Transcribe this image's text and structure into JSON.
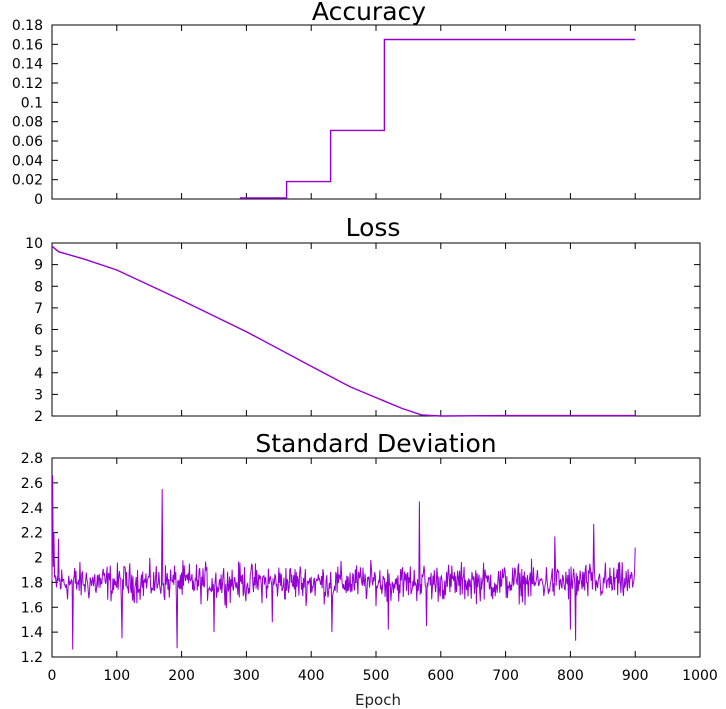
{
  "chart_data": [
    {
      "type": "line",
      "title": "Accuracy",
      "xlim": [
        0,
        1000
      ],
      "ylim": [
        0,
        0.18
      ],
      "yticks": [
        "0",
        "0.02",
        "0.04",
        "0.06",
        "0.08",
        "0.1",
        "0.12",
        "0.14",
        "0.16",
        "0.18"
      ],
      "color": "#9400d3",
      "points": [
        [
          290,
          0.001
        ],
        [
          362,
          0.001
        ],
        [
          362,
          0.018
        ],
        [
          430,
          0.018
        ],
        [
          430,
          0.071
        ],
        [
          513,
          0.071
        ],
        [
          513,
          0.165
        ],
        [
          900,
          0.165
        ]
      ]
    },
    {
      "type": "line",
      "title": "Loss",
      "xlim": [
        0,
        1000
      ],
      "ylim": [
        2,
        10
      ],
      "yticks": [
        "2",
        "3",
        "4",
        "5",
        "6",
        "7",
        "8",
        "9",
        "10"
      ],
      "color": "#9400d3",
      "points": [
        [
          0,
          9.85
        ],
        [
          10,
          9.6
        ],
        [
          50,
          9.25
        ],
        [
          100,
          8.75
        ],
        [
          200,
          7.35
        ],
        [
          300,
          5.9
        ],
        [
          400,
          4.3
        ],
        [
          460,
          3.35
        ],
        [
          500,
          2.85
        ],
        [
          540,
          2.35
        ],
        [
          570,
          2.05
        ],
        [
          600,
          2.0
        ],
        [
          700,
          2.02
        ],
        [
          900,
          2.02
        ]
      ]
    },
    {
      "type": "line",
      "title": "Standard Deviation",
      "xlim": [
        0,
        1000
      ],
      "ylim": [
        1.2,
        2.8
      ],
      "yticks": [
        "1.2",
        "1.4",
        "1.6",
        "1.8",
        "2",
        "2.2",
        "2.4",
        "2.6",
        "2.8"
      ],
      "xticks": [
        "0",
        "100",
        "200",
        "300",
        "400",
        "500",
        "600",
        "700",
        "800",
        "900",
        "1000"
      ],
      "xlabel": "Epoch",
      "color": "#9400d3",
      "samples": 900,
      "baseline": 1.8,
      "spikes": [
        [
          1,
          2.66
        ],
        [
          3,
          2.2
        ],
        [
          10,
          2.15
        ],
        [
          32,
          1.26
        ],
        [
          108,
          1.35
        ],
        [
          170,
          2.55
        ],
        [
          193,
          1.27
        ],
        [
          250,
          1.4
        ],
        [
          340,
          1.48
        ],
        [
          432,
          1.4
        ],
        [
          519,
          1.42
        ],
        [
          567,
          2.45
        ],
        [
          578,
          1.45
        ],
        [
          776,
          2.17
        ],
        [
          800,
          1.42
        ],
        [
          808,
          1.33
        ],
        [
          836,
          2.27
        ],
        [
          900,
          2.08
        ]
      ]
    }
  ]
}
